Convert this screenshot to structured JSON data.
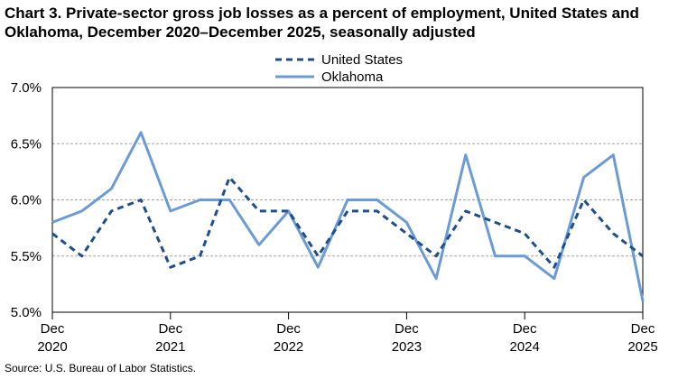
{
  "title": "Chart 3. Private-sector gross job losses as a percent of employment, United States and Oklahoma, December 2020–December 2025, seasonally adjusted",
  "source": "Source: U.S. Bureau of Labor Statistics.",
  "chart_data": {
    "type": "line",
    "title": "Chart 3. Private-sector gross job losses as a percent of employment, United States and Oklahoma, December 2020–December 2025, seasonally adjusted",
    "xlabel": "",
    "ylabel": "",
    "ylim": [
      5.0,
      7.0
    ],
    "y_ticks": [
      "7.0%",
      "6.5%",
      "6.0%",
      "5.5%",
      "5.0%"
    ],
    "y_tick_values": [
      7.0,
      6.5,
      6.0,
      5.5,
      5.0
    ],
    "x": [
      "Dec 2020",
      "Mar 2021",
      "Jun 2021",
      "Sep 2021",
      "Dec 2021",
      "Mar 2022",
      "Jun 2022",
      "Sep 2022",
      "Dec 2022",
      "Mar 2023",
      "Jun 2023",
      "Sep 2023",
      "Dec 2023",
      "Mar 2024",
      "Jun 2024",
      "Sep 2024",
      "Dec 2024",
      "Mar 2025",
      "Jun 2025",
      "Sep 2025",
      "Dec 2025"
    ],
    "x_tick_labels": [
      {
        "month": "Dec",
        "year": "2020",
        "index": 0
      },
      {
        "month": "Dec",
        "year": "2021",
        "index": 4
      },
      {
        "month": "Dec",
        "year": "2022",
        "index": 8
      },
      {
        "month": "Dec",
        "year": "2023",
        "index": 12
      },
      {
        "month": "Dec",
        "year": "2024",
        "index": 16
      },
      {
        "month": "Dec",
        "year": "2025",
        "index": 20
      }
    ],
    "grid": true,
    "legend": "top-center",
    "series": [
      {
        "name": "United States",
        "style": "dashed",
        "color": "#1f4e8c",
        "values": [
          5.7,
          5.5,
          5.9,
          6.0,
          5.4,
          5.5,
          6.2,
          5.9,
          5.9,
          5.5,
          5.9,
          5.9,
          5.7,
          5.5,
          5.9,
          5.8,
          5.7,
          5.4,
          6.0,
          5.7,
          5.5
        ]
      },
      {
        "name": "Oklahoma",
        "style": "solid",
        "color": "#6b9bd6",
        "values": [
          5.8,
          5.9,
          6.1,
          6.6,
          5.9,
          6.0,
          6.0,
          5.6,
          5.9,
          5.4,
          6.0,
          6.0,
          5.8,
          5.3,
          6.4,
          5.5,
          5.5,
          5.3,
          6.2,
          6.4,
          5.1
        ]
      }
    ]
  }
}
